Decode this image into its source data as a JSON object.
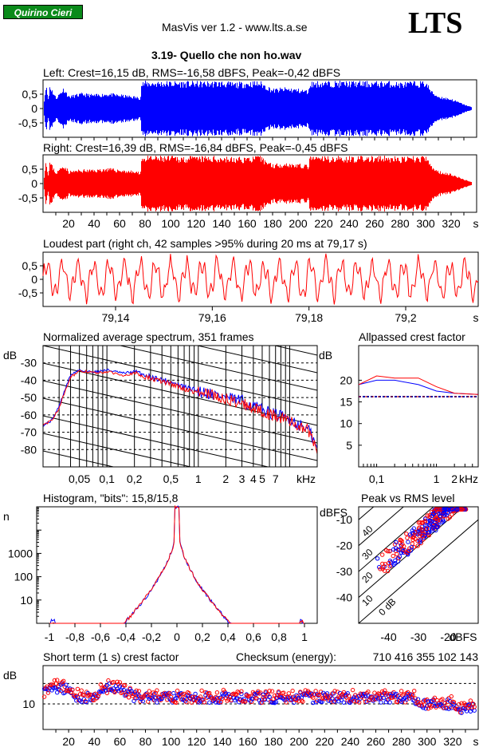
{
  "header": {
    "logo_text": "Quirino Cieri",
    "app_title": "MasVis ver 1.2 - www.lts.a.se",
    "brand": "LTS",
    "file_title": "3.19- Quello che non ho.wav"
  },
  "colors": {
    "left": "#0000ff",
    "right": "#ff0000",
    "logo_bg": "#0a8a1a"
  },
  "chart_data": [
    {
      "id": "left",
      "type": "line",
      "title": "Left: Crest=16,15 dB, RMS=-16,58 dBFS, Peak=-0,42 dBFS",
      "ylim": [
        -1,
        1
      ],
      "ytick_labels": [
        "0,5",
        "0",
        "-0,5"
      ],
      "xlim": [
        0,
        340
      ],
      "envelope": {
        "t": [
          0,
          2,
          4,
          5,
          10,
          16,
          20,
          30,
          40,
          50,
          60,
          70,
          76,
          77,
          80,
          100,
          120,
          140,
          150,
          160,
          170,
          180,
          190,
          200,
          208,
          209,
          215,
          240,
          260,
          270,
          280,
          290,
          300,
          305,
          310,
          320,
          330,
          336
        ],
        "amp": [
          0,
          0.9,
          0.3,
          0.85,
          0.4,
          0.75,
          0.45,
          0.55,
          0.5,
          0.55,
          0.5,
          0.45,
          0.4,
          0.95,
          0.97,
          0.97,
          0.96,
          0.97,
          0.92,
          0.96,
          0.97,
          0.7,
          0.75,
          0.7,
          0.65,
          0.96,
          0.97,
          0.97,
          0.96,
          0.97,
          0.93,
          0.96,
          0.97,
          0.6,
          0.45,
          0.35,
          0.15,
          0.05
        ]
      }
    },
    {
      "id": "right",
      "type": "line",
      "title": "Right: Crest=16,39 dB, RMS=-16,84 dBFS, Peak=-0,45 dBFS",
      "ylim": [
        -1,
        1
      ],
      "ytick_labels": [
        "0,5",
        "0",
        "-0,5"
      ],
      "xlim": [
        0,
        340
      ],
      "xticks": [
        20,
        40,
        60,
        80,
        100,
        120,
        140,
        160,
        180,
        200,
        220,
        240,
        260,
        280,
        300,
        320
      ],
      "xunit": "s",
      "envelope": {
        "t": [
          0,
          2,
          4,
          5,
          10,
          16,
          20,
          30,
          40,
          50,
          60,
          70,
          76,
          77,
          80,
          100,
          120,
          140,
          150,
          160,
          170,
          180,
          190,
          200,
          208,
          209,
          215,
          240,
          260,
          270,
          280,
          290,
          300,
          305,
          310,
          320,
          330,
          336
        ],
        "amp": [
          0,
          0.85,
          0.3,
          0.8,
          0.4,
          0.7,
          0.45,
          0.5,
          0.5,
          0.55,
          0.5,
          0.45,
          0.4,
          0.95,
          0.97,
          0.97,
          0.96,
          0.97,
          0.92,
          0.96,
          0.97,
          0.7,
          0.75,
          0.7,
          0.65,
          0.96,
          0.97,
          0.97,
          0.96,
          0.97,
          0.93,
          0.96,
          0.97,
          0.6,
          0.45,
          0.35,
          0.15,
          0.05
        ]
      }
    },
    {
      "id": "loudest",
      "type": "line",
      "title": "Loudest part (right ch, 42 samples >95% during 20 ms at 79,17 s)",
      "ylim": [
        -1,
        1
      ],
      "ytick_labels": [
        "0,5",
        "0",
        "-0,5"
      ],
      "xlim": [
        79.125,
        79.215
      ],
      "xticks": [
        79.14,
        79.16,
        79.18,
        79.2
      ],
      "xtick_labels": [
        "79,14",
        "79,16",
        "79,18",
        "79,2"
      ],
      "xunit": "s"
    },
    {
      "id": "spectrum",
      "type": "line",
      "title": "Normalized average spectrum, 351 frames",
      "ylabel": "dB",
      "xunit": "kHz",
      "xscale": "log",
      "xlim": [
        0.02,
        20
      ],
      "ylim": [
        -90,
        -20
      ],
      "yticks": [
        -30,
        -40,
        -50,
        -60,
        -70,
        -80
      ],
      "xtick_values": [
        0.05,
        0.1,
        0.2,
        0.5,
        1,
        2,
        3,
        4,
        5,
        7
      ],
      "xtick_labels": [
        "0,05",
        "0,1",
        "0,2",
        "0,5",
        "1",
        "2",
        "3",
        "4",
        "5",
        "7"
      ],
      "series": [
        {
          "color": "#0000ff",
          "x": [
            0.02,
            0.025,
            0.03,
            0.035,
            0.04,
            0.05,
            0.06,
            0.08,
            0.1,
            0.15,
            0.2,
            0.3,
            0.5,
            0.7,
            1,
            1.5,
            2,
            3,
            4,
            5,
            7,
            10,
            13,
            16,
            20
          ],
          "y": [
            -66,
            -63,
            -55,
            -45,
            -37,
            -34,
            -35,
            -35,
            -34,
            -36,
            -35,
            -38,
            -41,
            -44,
            -46,
            -48,
            -50,
            -52,
            -55,
            -57,
            -60,
            -62,
            -66,
            -68,
            -80
          ]
        },
        {
          "color": "#ff0000",
          "x": [
            0.02,
            0.025,
            0.03,
            0.035,
            0.04,
            0.05,
            0.06,
            0.08,
            0.1,
            0.15,
            0.2,
            0.3,
            0.5,
            0.7,
            1,
            1.5,
            2,
            3,
            4,
            5,
            7,
            10,
            13,
            16,
            20
          ],
          "y": [
            -66,
            -63,
            -56,
            -46,
            -38,
            -35,
            -35,
            -36,
            -35,
            -37,
            -36,
            -39,
            -42,
            -45,
            -47,
            -49,
            -51,
            -53,
            -56,
            -58,
            -61,
            -63,
            -67,
            -69,
            -81
          ]
        }
      ]
    },
    {
      "id": "allpass",
      "type": "line",
      "title": "Allpassed crest factor",
      "ylabel": "dB",
      "xunit": "kHz",
      "xscale": "log",
      "xlim": [
        0.05,
        5
      ],
      "ylim": [
        0,
        28
      ],
      "yticks": [
        5,
        10,
        15,
        20
      ],
      "xtick_values": [
        0.1,
        1,
        2
      ],
      "xtick_labels": [
        "0,1",
        "1",
        "2"
      ],
      "reference": 16.2,
      "series": [
        {
          "color": "#0000ff",
          "x": [
            0.05,
            0.1,
            0.2,
            0.5,
            1,
            2,
            5
          ],
          "y": [
            19,
            20,
            20,
            19,
            17.5,
            17,
            16.7
          ]
        },
        {
          "color": "#ff0000",
          "x": [
            0.05,
            0.1,
            0.2,
            0.5,
            1,
            2,
            5
          ],
          "y": [
            19,
            21,
            20.5,
            20.5,
            18.5,
            17,
            16.7
          ]
        }
      ]
    },
    {
      "id": "histogram",
      "type": "line",
      "title": "Histogram, \"bits\": 15,8/15,8",
      "ylabel": "n",
      "yscale": "log",
      "xlim": [
        -1.1,
        1.1
      ],
      "ylim": [
        1,
        100000
      ],
      "ytick_values": [
        1000,
        100,
        10
      ],
      "ytick_labels": [
        "1000",
        "100",
        "10"
      ],
      "xtick_values": [
        -1,
        -0.8,
        -0.6,
        -0.4,
        -0.2,
        0,
        0.2,
        0.4,
        0.6,
        0.8,
        1
      ],
      "xtick_labels": [
        "-1",
        "-0,8",
        "-0,6",
        "-0,4",
        "-0,2",
        "0",
        "0,2",
        "0,4",
        "0,6",
        "0,8",
        "1"
      ]
    },
    {
      "id": "peakrms",
      "type": "scatter",
      "title": "Peak vs RMS level",
      "xlabel": "dBFS",
      "ylabel": "dBFS",
      "xlim": [
        -50,
        -10
      ],
      "ylim": [
        -50,
        -5
      ],
      "xticks": [
        -40,
        -30,
        -20
      ],
      "yticks": [
        -10,
        -20,
        -30,
        -40
      ],
      "diagonals": [
        {
          "offset": 40,
          "label": "40"
        },
        {
          "offset": 30,
          "label": "30"
        },
        {
          "offset": 20,
          "label": "20"
        },
        {
          "offset": 10,
          "label": "10"
        },
        {
          "offset": 0,
          "label": "0 dB"
        }
      ]
    },
    {
      "id": "shortterm",
      "type": "scatter",
      "title": "Short term (1 s) crest factor",
      "ylabel": "dB",
      "ytick_labels": [
        "10"
      ],
      "xlim": [
        0,
        340
      ],
      "ylim": [
        0,
        25
      ],
      "xticks": [
        20,
        40,
        60,
        80,
        100,
        120,
        140,
        160,
        180,
        200,
        220,
        240,
        260,
        280,
        300,
        320
      ],
      "xunit": "s",
      "checksum_label": "Checksum (energy):",
      "checksum_value": "710 416 355 102 143"
    }
  ]
}
